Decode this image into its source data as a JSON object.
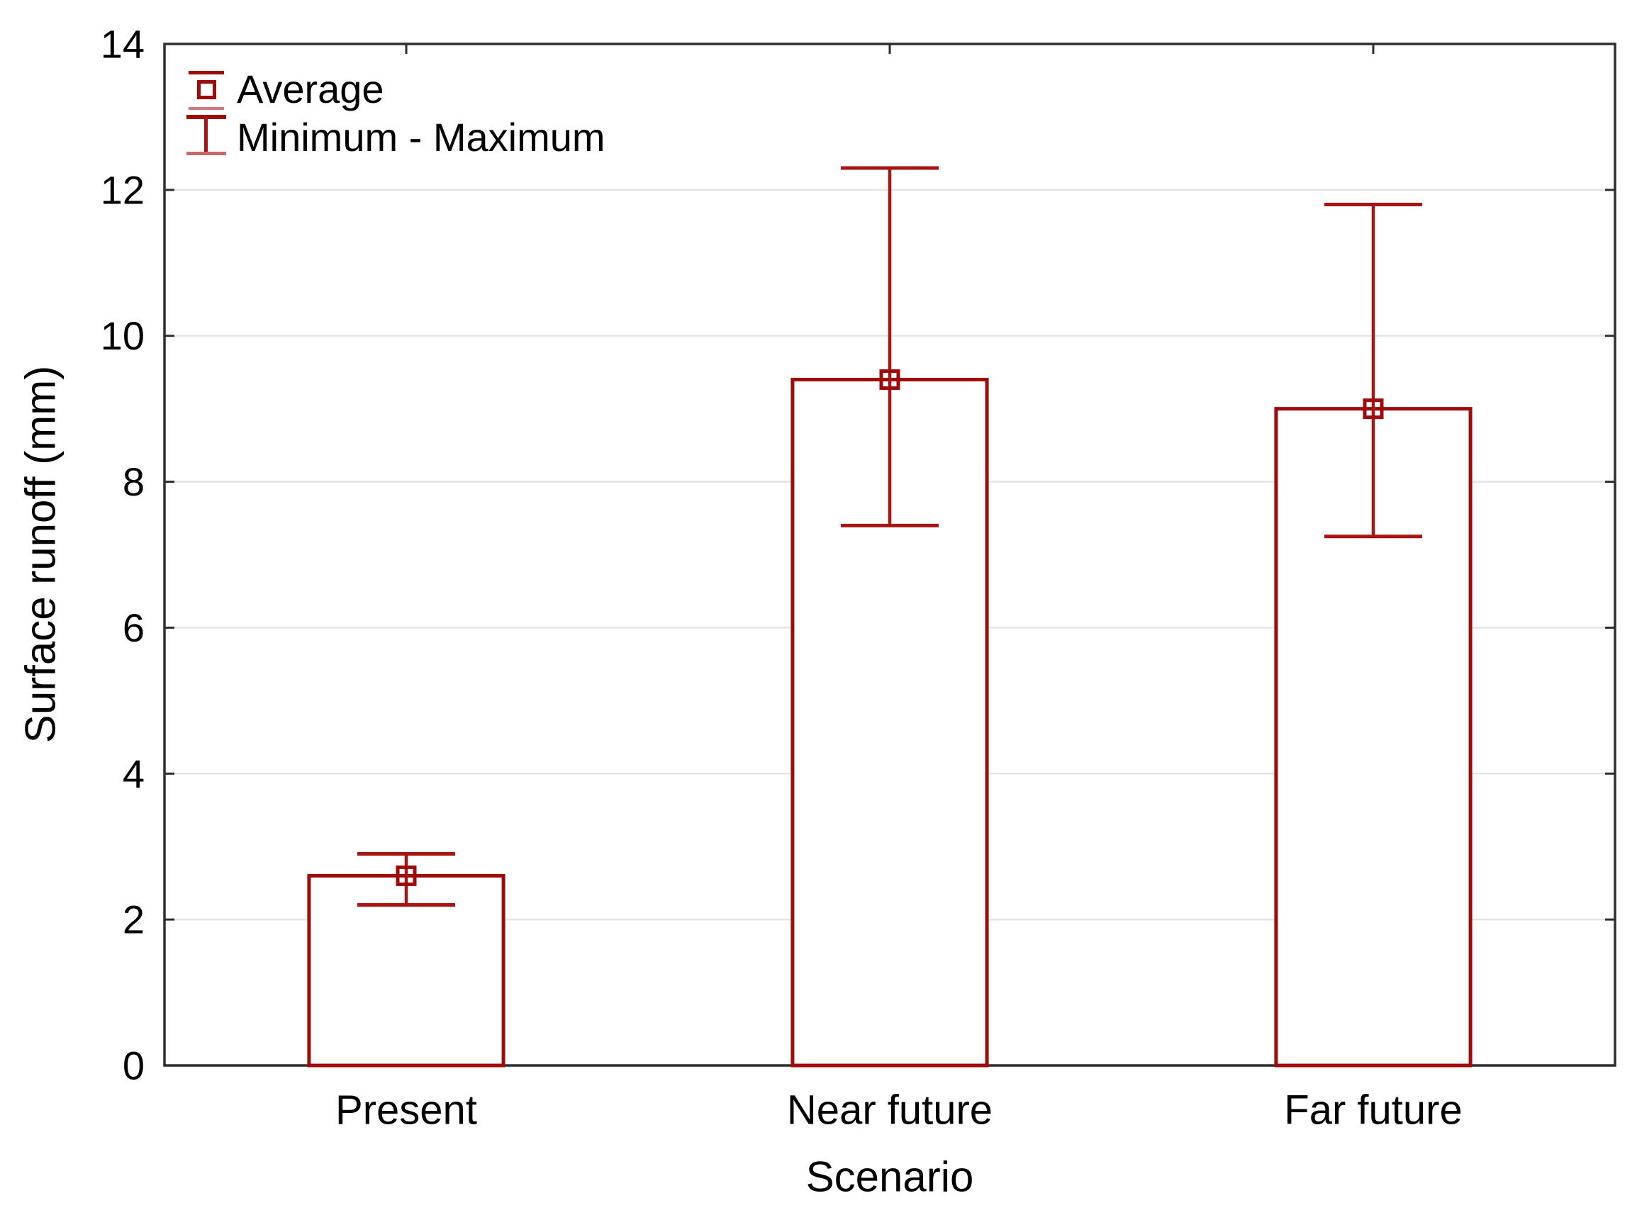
{
  "chart_data": {
    "type": "bar",
    "title": "",
    "categories": [
      "Present",
      "Near future",
      "Far future"
    ],
    "series": [
      {
        "name": "Average",
        "values": [
          2.6,
          9.4,
          9.0
        ]
      },
      {
        "name": "Minimum",
        "values": [
          2.2,
          7.4,
          7.25
        ]
      },
      {
        "name": "Maximum",
        "values": [
          2.9,
          12.3,
          11.8
        ]
      }
    ],
    "xlabel": "Scenario",
    "ylabel": "Surface runoff (mm)",
    "ylim": [
      0,
      14
    ],
    "yticks": [
      0,
      2,
      4,
      6,
      8,
      10,
      12,
      14
    ],
    "ytick_labels": [
      "0",
      "2",
      "4",
      "6",
      "8",
      "10",
      "12",
      "14"
    ],
    "grid": "horizontal gridlines at ticks 2-12",
    "legend": {
      "position": "top-left-inside",
      "items": [
        "Average",
        "Minimum - Maximum"
      ]
    },
    "colors": {
      "bar_outline": "#9e0b0b",
      "whisker": "#a81414",
      "bar_fill": "#ffffff",
      "gridline": "#e4e4e4",
      "frame": "#2e2e2e",
      "text": "#000000"
    }
  }
}
